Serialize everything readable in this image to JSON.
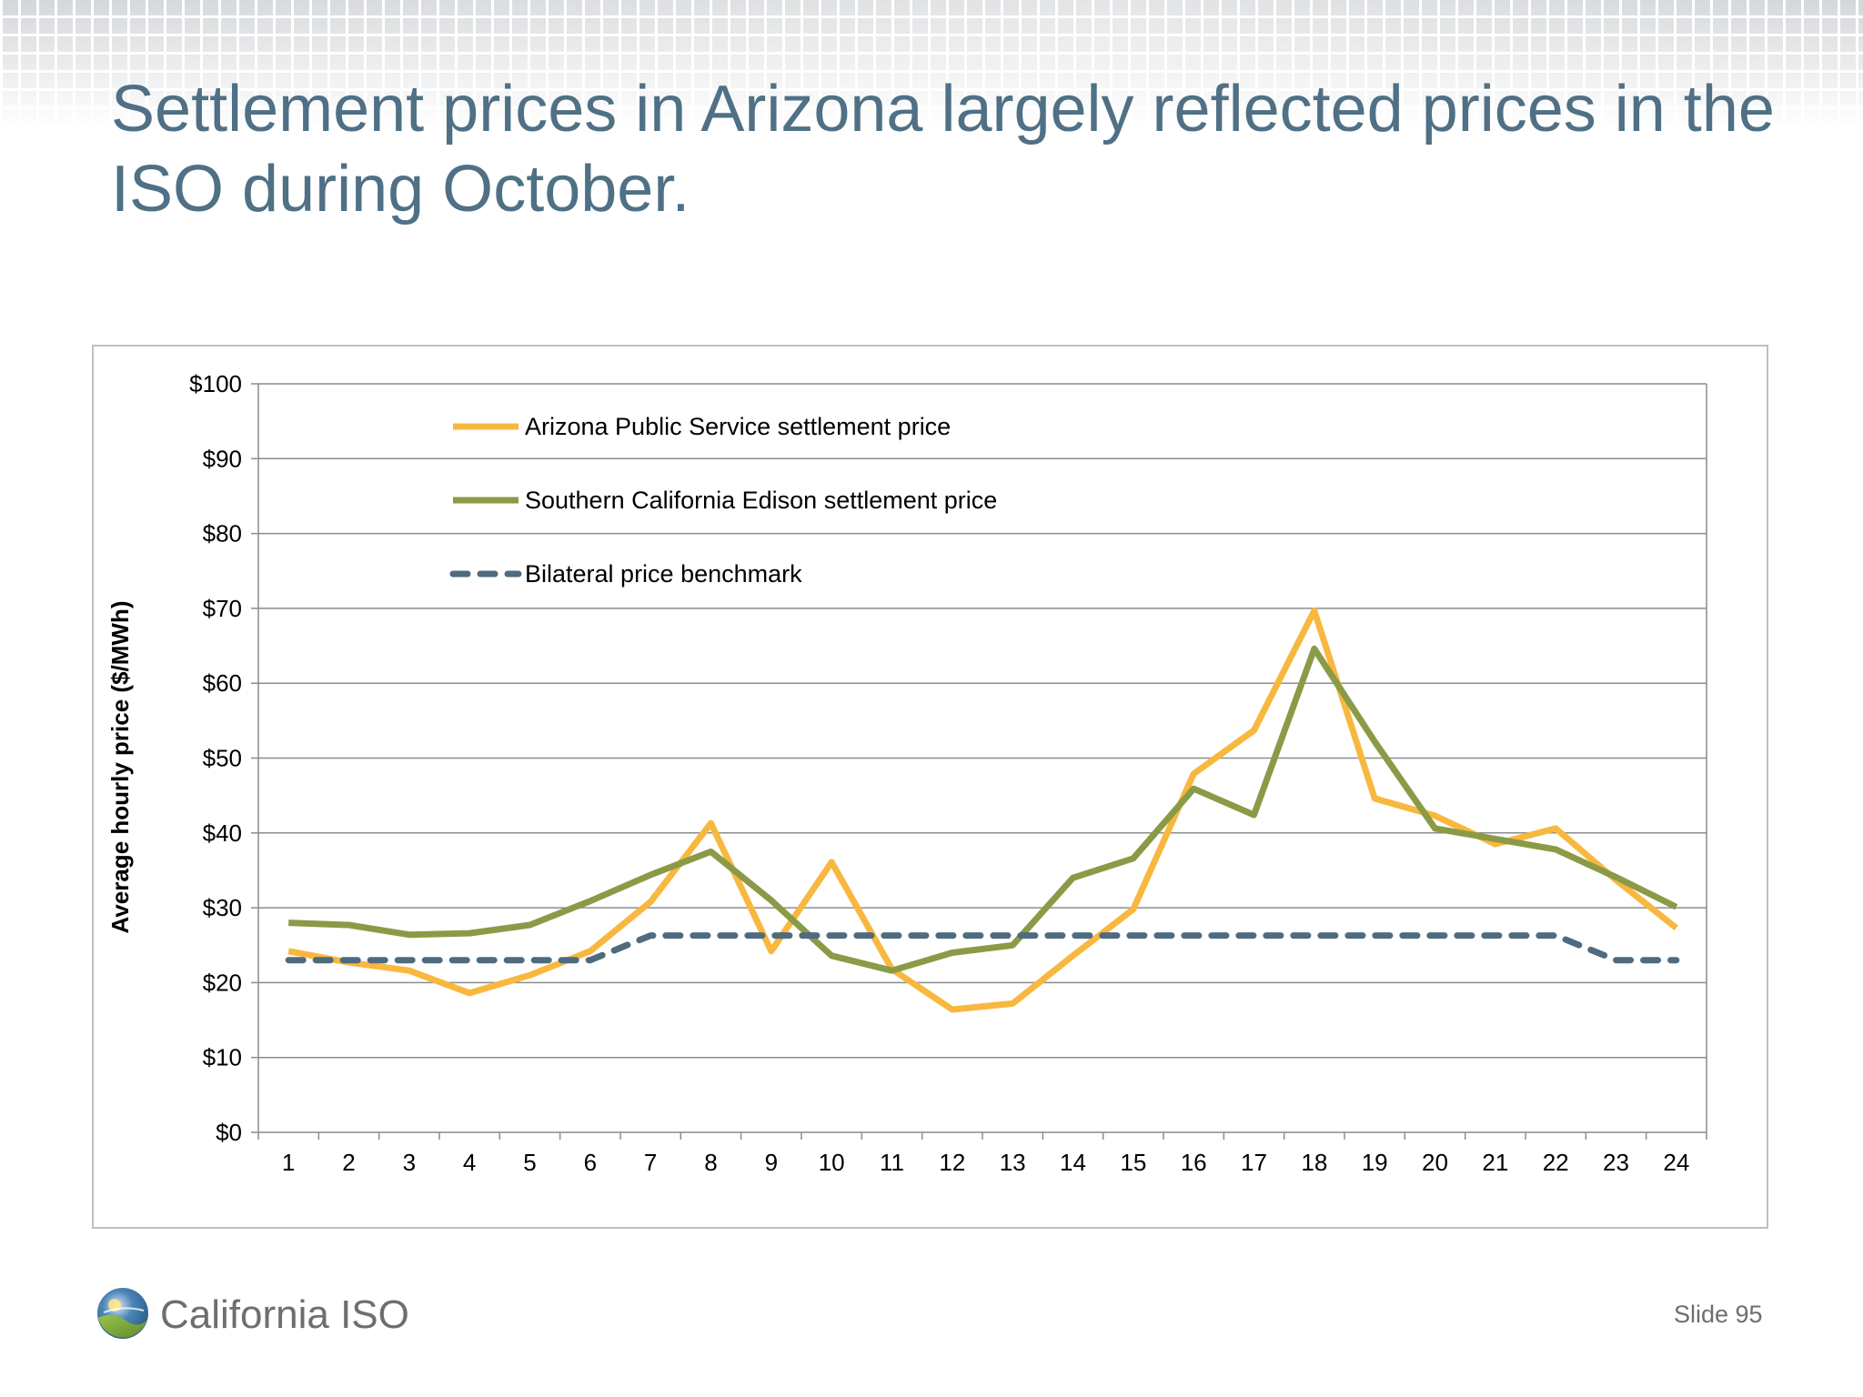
{
  "slide": {
    "title": "Settlement prices in Arizona largely reflected prices in the ISO during October.",
    "logo_text": "California ISO",
    "logo_icon": "california-iso-globe-icon",
    "slide_number": "Slide 95"
  },
  "colors": {
    "title": "#4f7085",
    "aps": "#f8b83f",
    "sce": "#8b9a46",
    "bilateral": "#4e6b80",
    "grid": "#8c8c8c"
  },
  "chart_data": {
    "type": "line",
    "ylabel": "Average hourly price ($/MWh)",
    "xlabel": "",
    "ylim": [
      0,
      100
    ],
    "y_ticks": [
      "$0",
      "$10",
      "$20",
      "$30",
      "$40",
      "$50",
      "$60",
      "$70",
      "$80",
      "$90",
      "$100"
    ],
    "categories": [
      "1",
      "2",
      "3",
      "4",
      "5",
      "6",
      "7",
      "8",
      "9",
      "10",
      "11",
      "12",
      "13",
      "14",
      "15",
      "16",
      "17",
      "18",
      "19",
      "20",
      "21",
      "22",
      "23",
      "24"
    ],
    "legend_position": "top-left inside plot",
    "grid": true,
    "series": [
      {
        "name": "Arizona Public Service settlement price",
        "style": "solid",
        "values": [
          24.2,
          22.7,
          21.6,
          18.6,
          21.0,
          24.2,
          30.8,
          41.3,
          24.2,
          36.1,
          21.8,
          16.4,
          17.2,
          23.6,
          29.8,
          47.9,
          53.7,
          69.7,
          44.6,
          42.3,
          38.5,
          40.6,
          33.7,
          27.3
        ]
      },
      {
        "name": "Southern California Edison settlement price",
        "style": "solid",
        "values": [
          28.0,
          27.7,
          26.4,
          26.6,
          27.7,
          30.9,
          34.4,
          37.5,
          31.0,
          23.6,
          21.6,
          24.0,
          25.0,
          34.0,
          36.6,
          45.9,
          42.4,
          64.6,
          52.2,
          40.6,
          39.2,
          37.8,
          34.1,
          30.1
        ]
      },
      {
        "name": "Bilateral price benchmark",
        "style": "dashed",
        "values": [
          23.0,
          23.0,
          23.0,
          23.0,
          23.0,
          23.0,
          26.3,
          26.3,
          26.3,
          26.3,
          26.3,
          26.3,
          26.3,
          26.3,
          26.3,
          26.3,
          26.3,
          26.3,
          26.3,
          26.3,
          26.3,
          26.3,
          23.0,
          23.0
        ]
      }
    ]
  }
}
